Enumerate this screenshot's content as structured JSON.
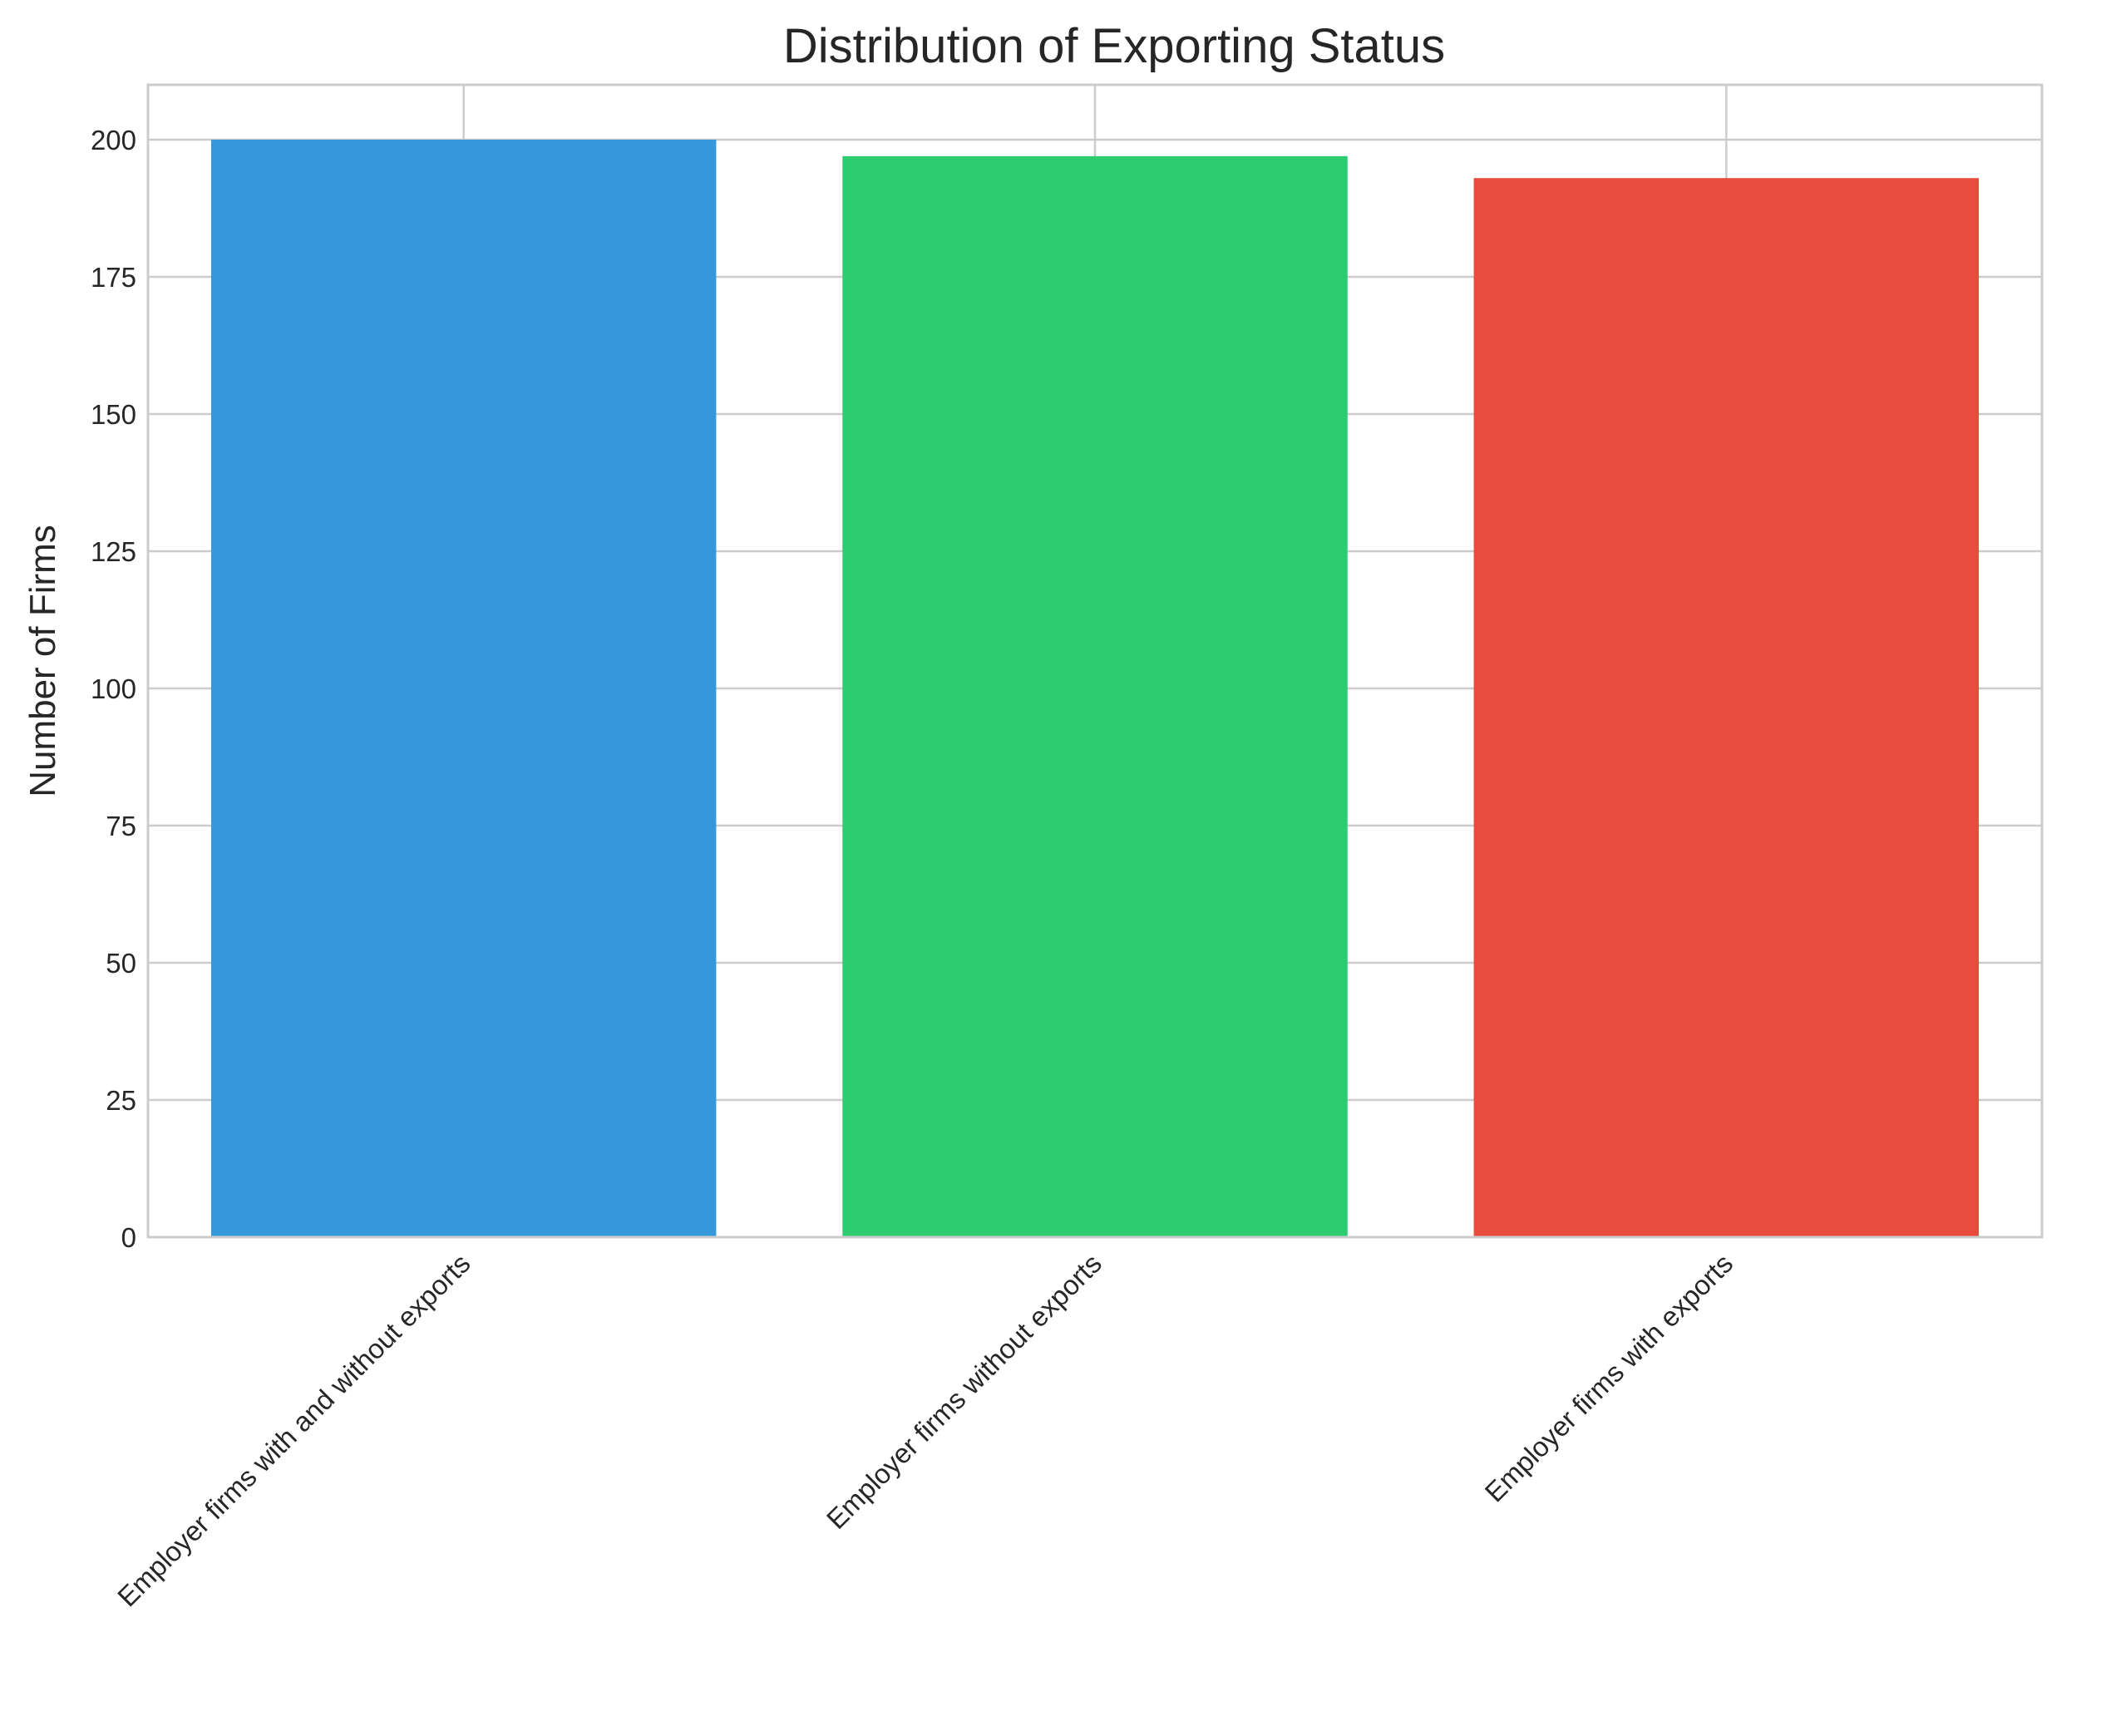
{
  "chart_data": {
    "type": "bar",
    "title": "Distribution of Exporting Status",
    "xlabel": "",
    "ylabel": "Number of Firms",
    "categories": [
      "Employer firms with and without exports",
      "Employer firms without exports",
      "Employer firms with exports"
    ],
    "values": [
      200,
      197,
      193
    ],
    "colors": [
      "#3498db",
      "#2ecc71",
      "#e74c3c"
    ],
    "ylim": [
      0,
      210
    ],
    "yticks": [
      0,
      25,
      50,
      75,
      100,
      125,
      150,
      175,
      200
    ],
    "ytick_labels": [
      "0",
      "25",
      "50",
      "75",
      "100",
      "125",
      "150",
      "175",
      "200"
    ],
    "grid": true,
    "legend": "none"
  }
}
